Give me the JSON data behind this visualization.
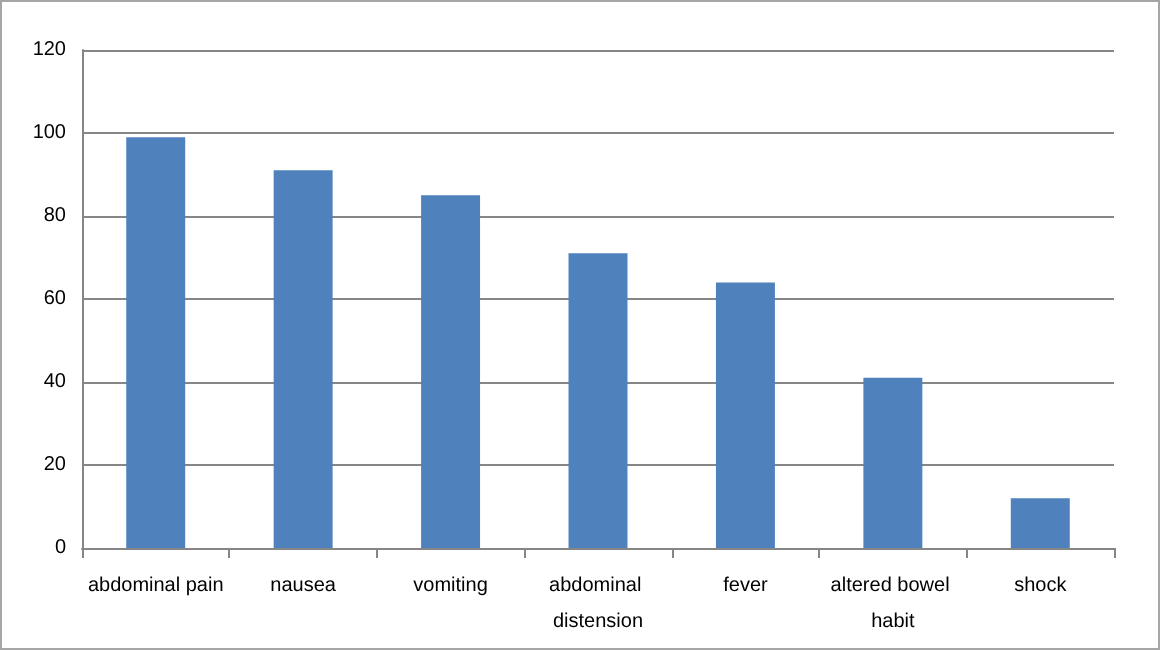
{
  "chart_data": {
    "type": "bar",
    "categories": [
      "abdominal pain",
      "nausea",
      "vomiting",
      "abdominal distension",
      "fever",
      "altered bowel habit",
      "shock"
    ],
    "values": [
      99,
      91,
      85,
      71,
      64,
      41,
      12
    ],
    "color": "#4f81bd",
    "ylim": [
      0,
      120
    ],
    "yticks": [
      0,
      20,
      40,
      60,
      80,
      100,
      120
    ],
    "grid": true
  }
}
